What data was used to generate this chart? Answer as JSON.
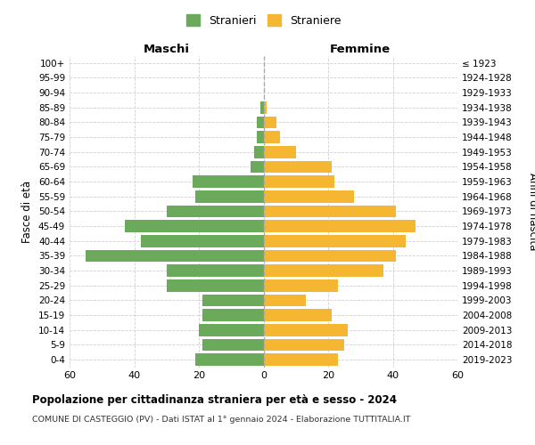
{
  "age_groups": [
    "100+",
    "95-99",
    "90-94",
    "85-89",
    "80-84",
    "75-79",
    "70-74",
    "65-69",
    "60-64",
    "55-59",
    "50-54",
    "45-49",
    "40-44",
    "35-39",
    "30-34",
    "25-29",
    "20-24",
    "15-19",
    "10-14",
    "5-9",
    "0-4"
  ],
  "birth_years": [
    "≤ 1923",
    "1924-1928",
    "1929-1933",
    "1934-1938",
    "1939-1943",
    "1944-1948",
    "1949-1953",
    "1954-1958",
    "1959-1963",
    "1964-1968",
    "1969-1973",
    "1974-1978",
    "1979-1983",
    "1984-1988",
    "1989-1993",
    "1994-1998",
    "1999-2003",
    "2004-2008",
    "2009-2013",
    "2014-2018",
    "2019-2023"
  ],
  "maschi": [
    0,
    0,
    0,
    1,
    2,
    2,
    3,
    4,
    22,
    21,
    30,
    43,
    38,
    55,
    30,
    30,
    19,
    19,
    20,
    19,
    21
  ],
  "femmine": [
    0,
    0,
    0,
    1,
    4,
    5,
    10,
    21,
    22,
    28,
    41,
    47,
    44,
    41,
    37,
    23,
    13,
    21,
    26,
    25,
    23
  ],
  "color_maschi": "#6aaa5a",
  "color_femmine": "#f5b731",
  "background_color": "#ffffff",
  "grid_color": "#d0d0d0",
  "title": "Popolazione per cittadinanza straniera per età e sesso - 2024",
  "subtitle": "COMUNE DI CASTEGGIO (PV) - Dati ISTAT al 1° gennaio 2024 - Elaborazione TUTTITALIA.IT",
  "ylabel_left": "Fasce di età",
  "ylabel_right": "Anni di nascita",
  "xlabel_left": "Maschi",
  "xlabel_right": "Femmine",
  "legend_maschi": "Stranieri",
  "legend_femmine": "Straniere",
  "xlim": 60,
  "bar_height": 0.82
}
